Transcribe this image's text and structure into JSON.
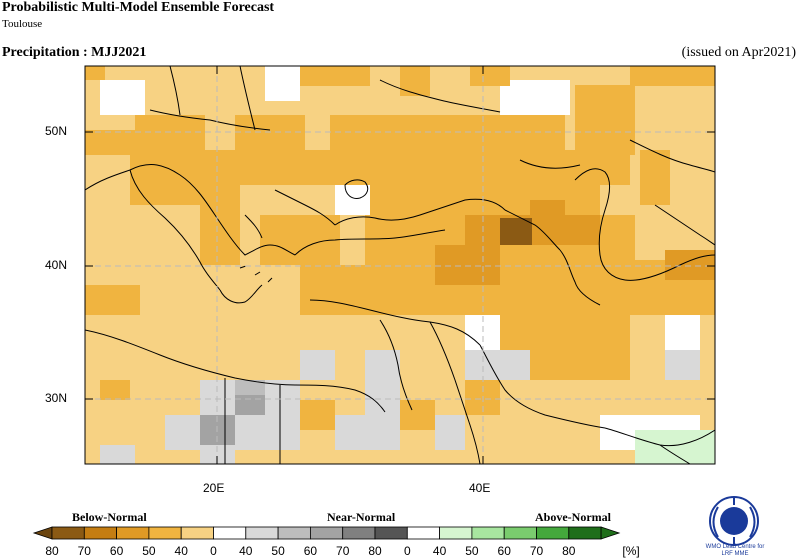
{
  "header": {
    "title": "Probabilistic Multi-Model Ensemble Forecast",
    "subtitle": "Toulouse",
    "variable": "Precipitation : MJJ2021",
    "issued": "(issued on Apr2021)"
  },
  "map": {
    "lat_labels": [
      "50N",
      "40N",
      "30N"
    ],
    "lon_labels": [
      "20E",
      "40E"
    ],
    "extent": {
      "lon_min": 10,
      "lon_max": 57,
      "lat_min": 25,
      "lat_max": 55
    }
  },
  "legend": {
    "categories": [
      "Below-Normal",
      "Near-Normal",
      "Above-Normal"
    ],
    "tick_labels": [
      "80",
      "70",
      "60",
      "50",
      "40",
      "0",
      "40",
      "50",
      "60",
      "70",
      "80",
      "0",
      "40",
      "50",
      "60",
      "70",
      "80"
    ],
    "unit": "[%]",
    "below_colors": [
      "#8b5a14",
      "#c47d12",
      "#e09a25",
      "#f0b440",
      "#f7d283"
    ],
    "near_colors": [
      "#ffffff",
      "#d9d9d9",
      "#bdbdbd",
      "#a3a3a3",
      "#808080",
      "#555555"
    ],
    "above_colors": [
      "#ffffff",
      "#d6f5d0",
      "#a8e6a0",
      "#7acc6e",
      "#44a83c",
      "#1f6e1a"
    ]
  },
  "logo": {
    "text_line1": "WMO Lead Centre for",
    "text_line2": "LRF MME"
  }
}
